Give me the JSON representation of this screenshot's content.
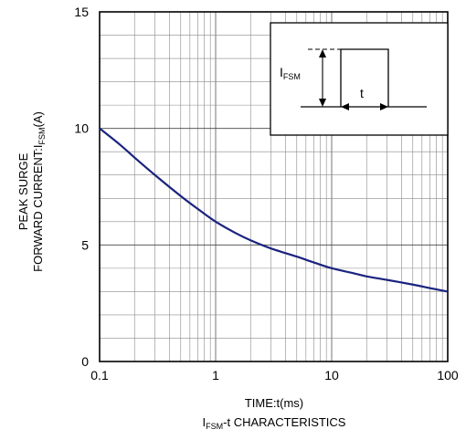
{
  "chart_data": {
    "type": "line",
    "title": "",
    "caption": {
      "main": "I",
      "sub": "FSM",
      "rest": "-t CHARACTERISTICS"
    },
    "xlabel": "TIME:t(ms)",
    "ylabel": {
      "line1": "PEAK SURGE",
      "line2_main": "FORWARD CURRENT:I",
      "line2_sub": "FSM",
      "line2_rest": "(A)"
    },
    "x_scale": "log",
    "xlim": [
      0.1,
      100
    ],
    "ylim": [
      0,
      15
    ],
    "x_ticks": [
      "0.1",
      "1",
      "10",
      "100"
    ],
    "y_ticks": [
      "0",
      "5",
      "10",
      "15"
    ],
    "grid": true,
    "series": [
      {
        "name": "",
        "color": "#1a237e",
        "x": [
          0.1,
          0.15,
          0.2,
          0.3,
          0.5,
          0.7,
          1,
          1.5,
          2,
          3,
          5,
          7,
          10,
          15,
          20,
          30,
          50,
          70,
          100
        ],
        "y": [
          10.0,
          9.3,
          8.75,
          8.0,
          7.1,
          6.55,
          6.0,
          5.5,
          5.2,
          4.85,
          4.5,
          4.25,
          4.0,
          3.8,
          3.65,
          3.5,
          3.3,
          3.15,
          3.0
        ]
      }
    ],
    "inset": {
      "label_main": "I",
      "label_sub": "FSM",
      "label_t": "t",
      "legend_position": "top-right"
    }
  }
}
